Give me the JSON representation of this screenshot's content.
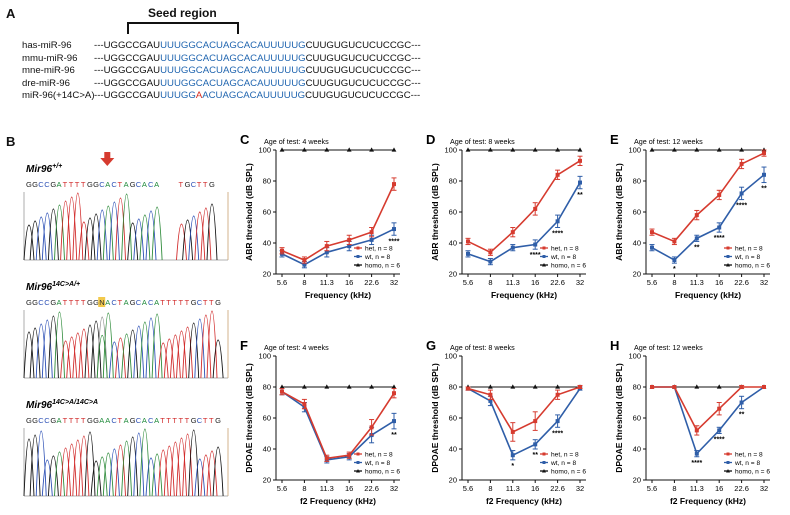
{
  "panels": {
    "A": {
      "label": "A",
      "seed_label": "Seed region",
      "rows": [
        {
          "name": "has-miR-96",
          "left": "---UGGCCGAU",
          "blue1": "UUUGGCACUAGCACAUUUUUG",
          "red": "",
          "blue2": "",
          "right": "CUUGUGUCUCUCCGC---"
        },
        {
          "name": "mmu-miR-96",
          "left": "---UGGCCGAU",
          "blue1": "UUUGGCACUAGCACAUUUUUG",
          "red": "",
          "blue2": "",
          "right": "CUUGUGUCUCUCCGC---"
        },
        {
          "name": "mne-miR-96",
          "left": "---UGGCCGAU",
          "blue1": "UUUGGCACUAGCACAUUUUUG",
          "red": "",
          "blue2": "",
          "right": "CUUGUGUCUCUCCGC---"
        },
        {
          "name": "dre-miR-96",
          "left": "---UGGCCGAU",
          "blue1": "UUUGGCACUAGCACAUUUUUG",
          "red": "",
          "blue2": "",
          "right": "CUUGUGUCUCUCCGC---"
        },
        {
          "name": "miR-96(+14C>A)",
          "left": "---UGGCCGAU",
          "blue1": "UUUGG",
          "red": "A",
          "blue2": "ACUAGCACAUUUUUG",
          "right": "CUUGUGUCUCUCCGC---"
        }
      ]
    },
    "B": {
      "label": "B",
      "traces": [
        {
          "gene": "Mir96",
          "sup": "+/+",
          "seq": "GGCCGATTTTGGCACTAGCACA   TGCTTG"
        },
        {
          "gene": "Mir96",
          "sup": "14C>A/+",
          "seq": "GGCCGATTTTGGNACTAGCACATTTTTGCTTG"
        },
        {
          "gene": "Mir96",
          "sup": "14C>A/14C>A",
          "seq": "GGCCGATTTTGGAACTAGCACATTTTTGCTTG"
        }
      ]
    },
    "legend": {
      "het": "het, n = 8",
      "wt": "wt, n = 8",
      "homo": "homo, n = 6"
    },
    "colors": {
      "het": "#d63b2f",
      "wt": "#2f5ea8",
      "homo": "#111111"
    }
  },
  "chart_data": [
    {
      "panel": "C",
      "type": "line",
      "title": "Age of test: 4 weeks",
      "xlabel": "Frequency (kHz)",
      "ylabel": "ABR threshold (dB SPL)",
      "categories": [
        "5.6",
        "8",
        "11.3",
        "16",
        "22.6",
        "32"
      ],
      "ylim": [
        20,
        100
      ],
      "yticks": [
        20,
        40,
        60,
        80,
        100
      ],
      "series": [
        {
          "name": "het, n = 8",
          "values": [
            35,
            29,
            38,
            42,
            47,
            78
          ],
          "err": [
            2,
            2,
            3,
            3,
            3,
            4
          ]
        },
        {
          "name": "wt, n = 8",
          "values": [
            33,
            26,
            34,
            38,
            42,
            49
          ],
          "err": [
            2,
            2,
            3,
            3,
            3,
            4
          ]
        },
        {
          "name": "homo, n = 6",
          "values": [
            100,
            100,
            100,
            100,
            100,
            100
          ],
          "err": [
            0,
            0,
            0,
            0,
            0,
            0
          ]
        }
      ],
      "stars": [
        {
          "cat": 5,
          "text": "****"
        }
      ]
    },
    {
      "panel": "D",
      "type": "line",
      "title": "Age of test: 8 weeks",
      "xlabel": "Frequency (kHz)",
      "ylabel": "ABR threshold (dB SPL)",
      "categories": [
        "5.6",
        "8",
        "11.3",
        "16",
        "22.6",
        "32"
      ],
      "ylim": [
        20,
        100
      ],
      "yticks": [
        20,
        40,
        60,
        80,
        100
      ],
      "series": [
        {
          "name": "het, n = 8",
          "values": [
            41,
            34,
            47,
            62,
            84,
            93
          ],
          "err": [
            2,
            2,
            3,
            4,
            3,
            3
          ]
        },
        {
          "name": "wt, n = 8",
          "values": [
            33,
            28,
            37,
            39,
            54,
            79
          ],
          "err": [
            2,
            2,
            2,
            3,
            4,
            4
          ]
        },
        {
          "name": "homo, n = 6",
          "values": [
            100,
            100,
            100,
            100,
            100,
            100
          ],
          "err": [
            0,
            0,
            0,
            0,
            0,
            0
          ]
        }
      ],
      "stars": [
        {
          "cat": 3,
          "text": "****"
        },
        {
          "cat": 4,
          "text": "****"
        },
        {
          "cat": 5,
          "text": "**"
        }
      ]
    },
    {
      "panel": "E",
      "type": "line",
      "title": "Age of test: 12 weeks",
      "xlabel": "Frequency (kHz)",
      "ylabel": "ABR threshold (dB SPL)",
      "categories": [
        "5.6",
        "8",
        "11.3",
        "16",
        "22.6",
        "32"
      ],
      "ylim": [
        20,
        100
      ],
      "yticks": [
        20,
        40,
        60,
        80,
        100
      ],
      "series": [
        {
          "name": "het, n = 8",
          "values": [
            47,
            41,
            58,
            71,
            91,
            98
          ],
          "err": [
            2,
            2,
            3,
            3,
            3,
            2
          ]
        },
        {
          "name": "wt, n = 8",
          "values": [
            37,
            29,
            43,
            50,
            72,
            84
          ],
          "err": [
            2,
            2,
            2,
            3,
            4,
            5
          ]
        },
        {
          "name": "homo, n = 6",
          "values": [
            100,
            100,
            100,
            100,
            100,
            100
          ],
          "err": [
            0,
            0,
            0,
            0,
            0,
            0
          ]
        }
      ],
      "stars": [
        {
          "cat": 1,
          "text": "*"
        },
        {
          "cat": 2,
          "text": "**"
        },
        {
          "cat": 3,
          "text": "****"
        },
        {
          "cat": 4,
          "text": "****"
        },
        {
          "cat": 5,
          "text": "**"
        }
      ]
    },
    {
      "panel": "F",
      "type": "line",
      "title": "Age of test: 4 weeks",
      "xlabel": "f2 Frequency (kHz)",
      "ylabel": "DPOAE threshold (dB SPL)",
      "categories": [
        "5.6",
        "8",
        "11.3",
        "16",
        "22.6",
        "32"
      ],
      "ylim": [
        20,
        100
      ],
      "yticks": [
        20,
        40,
        60,
        80,
        100
      ],
      "series": [
        {
          "name": "het, n = 8",
          "values": [
            77,
            69,
            34,
            36,
            54,
            76
          ],
          "err": [
            2,
            3,
            2,
            2,
            5,
            3
          ]
        },
        {
          "name": "wt, n = 8",
          "values": [
            77,
            67,
            33,
            35,
            49,
            58
          ],
          "err": [
            2,
            3,
            2,
            2,
            5,
            5
          ]
        },
        {
          "name": "homo, n = 6",
          "values": [
            80,
            80,
            80,
            80,
            80,
            80
          ],
          "err": [
            0,
            0,
            0,
            0,
            0,
            0
          ]
        }
      ],
      "stars": [
        {
          "cat": 5,
          "text": "**"
        }
      ]
    },
    {
      "panel": "G",
      "type": "line",
      "title": "Age of test: 8 weeks",
      "xlabel": "f2 Frequency (kHz)",
      "ylabel": "DPOAE threshold (dB SPL)",
      "categories": [
        "5.6",
        "8",
        "11.3",
        "16",
        "22.6",
        "32"
      ],
      "ylim": [
        20,
        100
      ],
      "yticks": [
        20,
        40,
        60,
        80,
        100
      ],
      "series": [
        {
          "name": "het, n = 8",
          "values": [
            79,
            75,
            51,
            58,
            75,
            80
          ],
          "err": [
            1,
            3,
            6,
            6,
            3,
            1
          ]
        },
        {
          "name": "wt, n = 8",
          "values": [
            79,
            71,
            36,
            43,
            58,
            79
          ],
          "err": [
            1,
            3,
            3,
            3,
            4,
            1
          ]
        },
        {
          "name": "homo, n = 6",
          "values": [
            80,
            80,
            80,
            80,
            80,
            80
          ],
          "err": [
            0,
            0,
            0,
            0,
            0,
            0
          ]
        }
      ],
      "stars": [
        {
          "cat": 2,
          "text": "*"
        },
        {
          "cat": 3,
          "text": "**"
        },
        {
          "cat": 4,
          "text": "****"
        }
      ]
    },
    {
      "panel": "H",
      "type": "line",
      "title": "Age of test: 12 weeks",
      "xlabel": "f2 Frequency (kHz)",
      "ylabel": "DPOAE threshold (dB SPL)",
      "categories": [
        "5.6",
        "8",
        "11.3",
        "16",
        "22.6",
        "32"
      ],
      "ylim": [
        20,
        100
      ],
      "yticks": [
        20,
        40,
        60,
        80,
        100
      ],
      "series": [
        {
          "name": "het, n = 8",
          "values": [
            80,
            80,
            52,
            66,
            80,
            80
          ],
          "err": [
            0,
            0,
            3,
            4,
            1,
            0
          ]
        },
        {
          "name": "wt, n = 8",
          "values": [
            80,
            80,
            37,
            52,
            70,
            80
          ],
          "err": [
            0,
            0,
            2,
            2,
            4,
            0
          ]
        },
        {
          "name": "homo, n = 6",
          "values": [
            80,
            80,
            80,
            80,
            80,
            80
          ],
          "err": [
            0,
            0,
            0,
            0,
            0,
            0
          ]
        }
      ],
      "stars": [
        {
          "cat": 2,
          "text": "****"
        },
        {
          "cat": 3,
          "text": "****"
        },
        {
          "cat": 4,
          "text": "**"
        }
      ]
    }
  ]
}
